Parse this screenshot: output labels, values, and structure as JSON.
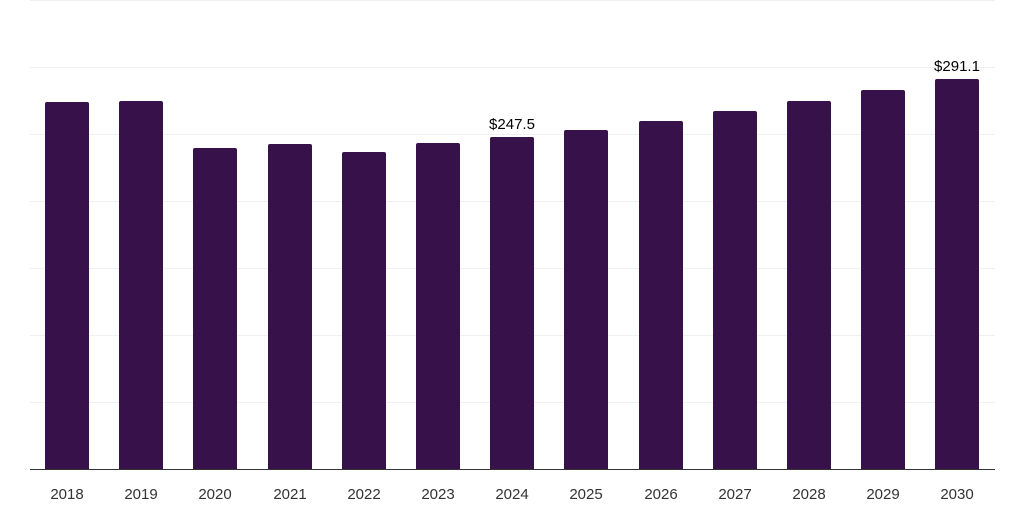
{
  "chart_data": {
    "type": "bar",
    "title": "",
    "xlabel": "",
    "ylabel": "",
    "categories": [
      "2018",
      "2019",
      "2020",
      "2021",
      "2022",
      "2023",
      "2024",
      "2025",
      "2026",
      "2027",
      "2028",
      "2029",
      "2030"
    ],
    "values": [
      274.0,
      274.7,
      239.5,
      242.5,
      236.5,
      243.3,
      247.5,
      253.0,
      259.7,
      267.2,
      274.7,
      283.0,
      291.1
    ],
    "ylim": [
      0,
      350
    ],
    "grid": true,
    "gridlines": [
      50,
      100,
      150,
      200,
      250,
      300,
      350
    ],
    "annotations": [
      {
        "category": "2024",
        "label": "$247.5"
      },
      {
        "category": "2030",
        "label": "$291.1"
      }
    ],
    "bar_color": "#36114a",
    "legend": null
  }
}
